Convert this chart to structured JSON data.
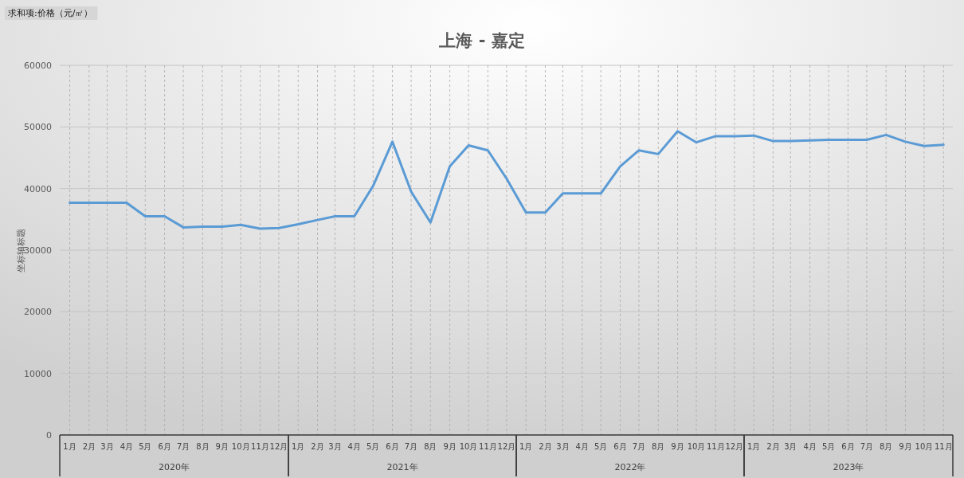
{
  "chart_data": {
    "type": "line",
    "title": "上海 - 嘉定",
    "ylabel": "坐标轴标题",
    "annotations": [
      "求和项:价格（元/㎡）",
      "2020年",
      "2021年",
      "2022年",
      "2023年"
    ],
    "x": [
      "2020-01",
      "2020-02",
      "2020-03",
      "2020-04",
      "2020-05",
      "2020-06",
      "2020-07",
      "2020-08",
      "2020-09",
      "2020-10",
      "2020-11",
      "2020-12",
      "2021-01",
      "2021-02",
      "2021-03",
      "2021-04",
      "2021-05",
      "2021-06",
      "2021-07",
      "2021-08",
      "2021-09",
      "2021-10",
      "2021-11",
      "2021-12",
      "2022-01",
      "2022-02",
      "2022-03",
      "2022-04",
      "2022-05",
      "2022-06",
      "2022-07",
      "2022-08",
      "2022-09",
      "2022-10",
      "2022-11",
      "2022-12",
      "2023-01",
      "2023-02",
      "2023-03",
      "2023-04",
      "2023-05",
      "2023-06",
      "2023-07",
      "2023-08",
      "2023-09",
      "2023-10",
      "2023-11"
    ],
    "xlim": [
      "2019-12-16",
      "2023-11-16"
    ],
    "xticks": [
      {
        "value": "2020-01",
        "label": "1月"
      },
      {
        "value": "2020-02",
        "label": "2月"
      },
      {
        "value": "2020-03",
        "label": "3月"
      },
      {
        "value": "2020-04",
        "label": "4月"
      },
      {
        "value": "2020-05",
        "label": "5月"
      },
      {
        "value": "2020-06",
        "label": "6月"
      },
      {
        "value": "2020-07",
        "label": "7月"
      },
      {
        "value": "2020-08",
        "label": "8月"
      },
      {
        "value": "2020-09",
        "label": "9月"
      },
      {
        "value": "2020-10",
        "label": "10月"
      },
      {
        "value": "2020-11",
        "label": "11月"
      },
      {
        "value": "2020-12",
        "label": "12月"
      },
      {
        "value": "2021-01",
        "label": "1月"
      },
      {
        "value": "2021-02",
        "label": "2月"
      },
      {
        "value": "2021-03",
        "label": "3月"
      },
      {
        "value": "2021-04",
        "label": "4月"
      },
      {
        "value": "2021-05",
        "label": "5月"
      },
      {
        "value": "2021-06",
        "label": "6月"
      },
      {
        "value": "2021-07",
        "label": "7月"
      },
      {
        "value": "2021-08",
        "label": "8月"
      },
      {
        "value": "2021-09",
        "label": "9月"
      },
      {
        "value": "2021-10",
        "label": "10月"
      },
      {
        "value": "2021-11",
        "label": "11月"
      },
      {
        "value": "2021-12",
        "label": "12月"
      },
      {
        "value": "2022-01",
        "label": "1月"
      },
      {
        "value": "2022-02",
        "label": "2月"
      },
      {
        "value": "2022-03",
        "label": "3月"
      },
      {
        "value": "2022-04",
        "label": "4月"
      },
      {
        "value": "2022-05",
        "label": "5月"
      },
      {
        "value": "2022-06",
        "label": "6月"
      },
      {
        "value": "2022-07",
        "label": "7月"
      },
      {
        "value": "2022-08",
        "label": "8月"
      },
      {
        "value": "2022-09",
        "label": "9月"
      },
      {
        "value": "2022-10",
        "label": "10月"
      },
      {
        "value": "2022-11",
        "label": "11月"
      },
      {
        "value": "2022-12",
        "label": "12月"
      },
      {
        "value": "2023-01",
        "label": "1月"
      },
      {
        "value": "2023-02",
        "label": "2月"
      },
      {
        "value": "2023-03",
        "label": "3月"
      },
      {
        "value": "2023-04",
        "label": "4月"
      },
      {
        "value": "2023-05",
        "label": "5月"
      },
      {
        "value": "2023-06",
        "label": "6月"
      },
      {
        "value": "2023-07",
        "label": "7月"
      },
      {
        "value": "2023-08",
        "label": "8月"
      },
      {
        "value": "2023-09",
        "label": "9月"
      },
      {
        "value": "2023-10",
        "label": "10月"
      },
      {
        "value": "2023-11",
        "label": "11月"
      }
    ],
    "series": [
      {
        "color": "#5b9bd5",
        "values": [
          37700,
          37700,
          37700,
          37700,
          35500,
          35500,
          33700,
          33800,
          33800,
          34100,
          33500,
          33600,
          34200,
          34900,
          35500,
          35500,
          40400,
          47600,
          39500,
          34500,
          43600,
          47000,
          46200,
          41600,
          36100,
          36100,
          39200,
          39200,
          39200,
          43600,
          46200,
          45600,
          49300,
          47500,
          48500,
          48500,
          48600,
          47700,
          47700,
          47800,
          47900,
          47900,
          47900,
          48700,
          47600,
          46900,
          47100
        ]
      }
    ],
    "ylim": [
      0,
      60000
    ],
    "yticks": [
      0,
      10000,
      20000,
      30000,
      40000,
      50000,
      60000
    ],
    "grid": true
  }
}
